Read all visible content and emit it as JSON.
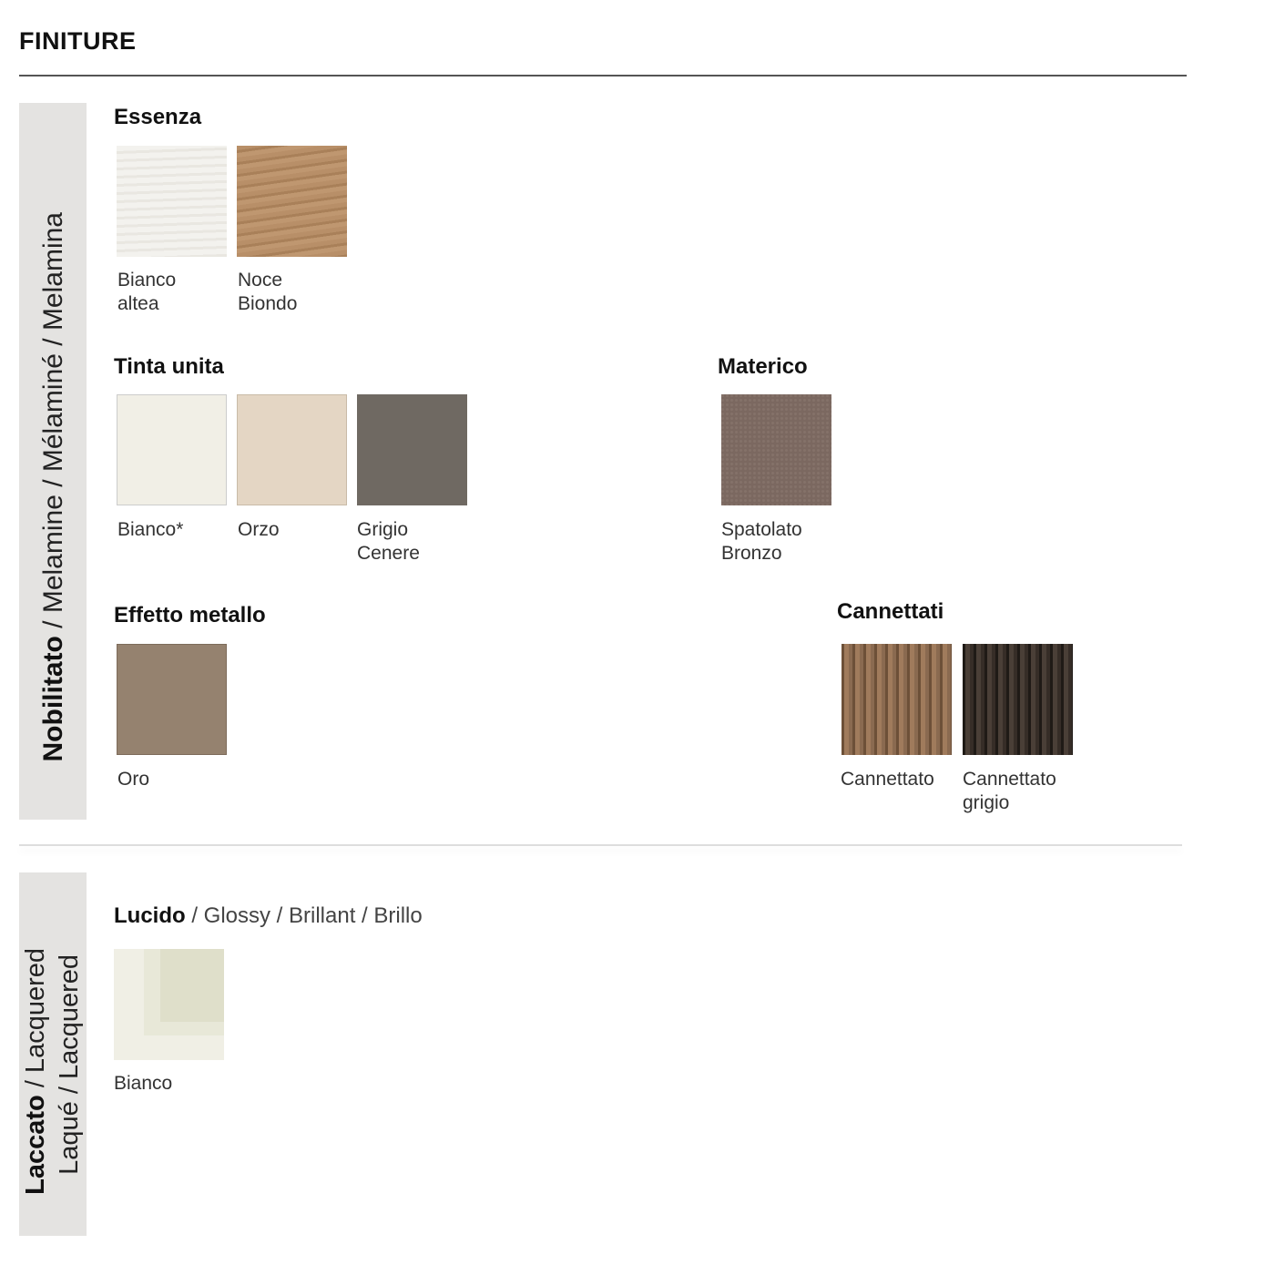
{
  "title": "FINITURE",
  "sections": {
    "nobilitato": {
      "bold": "Nobilitato",
      "rest": " / Melamine / Mélaminé / Melamina"
    },
    "laccato": {
      "line1_bold": "Laccato",
      "line1_rest": " / Lacquered",
      "line2": "Laqué / Lacquered"
    }
  },
  "groups": {
    "essenza": {
      "heading": "Essenza",
      "swatches": [
        {
          "label1": "Bianco",
          "label2": "altea",
          "color": "#efede8"
        },
        {
          "label1": "Noce",
          "label2": "Biondo",
          "color": "#b58d66"
        }
      ]
    },
    "tinta_unita": {
      "heading": "Tinta unita",
      "swatches": [
        {
          "label1": "Bianco*",
          "color": "#f1efe6"
        },
        {
          "label1": "Orzo",
          "color": "#e4d6c4"
        },
        {
          "label1": "Grigio",
          "label2": "Cenere",
          "color": "#6f6962"
        }
      ]
    },
    "materico": {
      "heading": "Materico",
      "swatches": [
        {
          "label1": "Spatolato",
          "label2": "Bronzo",
          "color": "#7b6860"
        }
      ]
    },
    "effetto_metallo": {
      "heading": "Effetto metallo",
      "swatches": [
        {
          "label1": "Oro",
          "color": "#95826f"
        }
      ]
    },
    "cannettati": {
      "heading": "Cannettati",
      "swatches": [
        {
          "label1": "Cannettato",
          "color": "#8a6a50"
        },
        {
          "label1": "Cannettato",
          "label2": "grigio",
          "color": "#3a312b"
        }
      ]
    },
    "lucido": {
      "heading_bold": "Lucido",
      "heading_rest": " / Glossy / Brillant / Brillo",
      "swatches": [
        {
          "label1": "Bianco",
          "color": "#ebeadb"
        }
      ]
    }
  }
}
